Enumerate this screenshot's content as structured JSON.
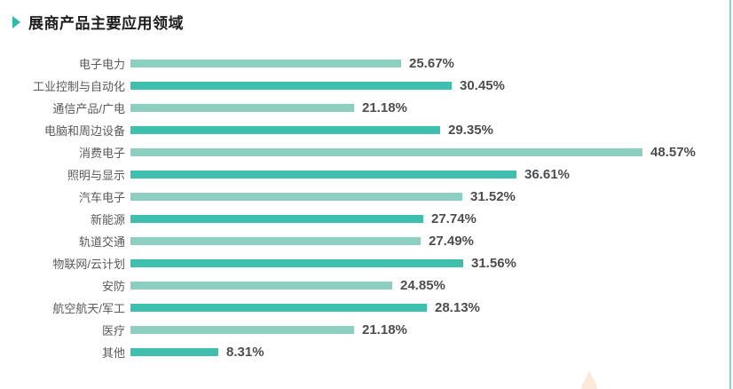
{
  "page": {
    "title": "展商产品主要应用领域"
  },
  "chart_data": {
    "type": "bar",
    "orientation": "horizontal",
    "title": "展商产品主要应用领域",
    "categories": [
      "电子电力",
      "工业控制与自动化",
      "通信产品/广电",
      "电脑和周边设备",
      "消费电子",
      "照明与显示",
      "汽车电子",
      "新能源",
      "轨道交通",
      "物联网/云计划",
      "安防",
      "航空航天/军工",
      "医疗",
      "其他"
    ],
    "values": [
      25.67,
      30.45,
      21.18,
      29.35,
      48.57,
      36.61,
      31.52,
      27.74,
      27.49,
      31.56,
      24.85,
      28.13,
      21.18,
      8.31
    ],
    "value_labels": [
      "25.67%",
      "30.45%",
      "21.18%",
      "29.35%",
      "48.57%",
      "36.61%",
      "31.52%",
      "27.74%",
      "27.49%",
      "31.56%",
      "24.85%",
      "28.13%",
      "21.18%",
      "8.31%"
    ],
    "xlim": [
      0,
      50
    ],
    "grid": "off",
    "legend": "none",
    "bar_colors_alternating": [
      "#8CCEC0",
      "#3FBFAD"
    ],
    "category_label_color": "#595959",
    "value_label_color": "#4B4D4F"
  },
  "decor": {
    "title_marker_color": "#2EB9A8",
    "right_edge_line_color": "#85D6CD",
    "bottom_triangle_color": "#FBE9DA"
  }
}
